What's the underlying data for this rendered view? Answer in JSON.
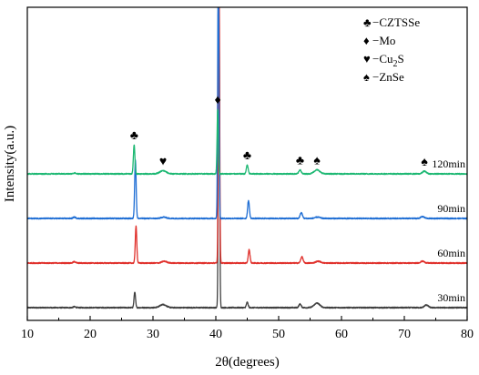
{
  "chart_data": {
    "type": "line",
    "title": "",
    "xlabel": "2θ(degrees)",
    "ylabel": "Intensity(a.u.)",
    "xlim": [
      10,
      80
    ],
    "xticks": [
      "10",
      "20",
      "30",
      "40",
      "50",
      "60",
      "70",
      "80"
    ],
    "y_ticks_shown": false,
    "grid": false,
    "legend_position": "top-right",
    "legend": [
      {
        "symbol": "♣",
        "text": "−CZTSSe"
      },
      {
        "symbol": "♦",
        "text": "−Mo"
      },
      {
        "symbol": "♥",
        "text": "−Cu",
        "sub": "2",
        "tail": "S"
      },
      {
        "symbol": "♠",
        "text": "−ZnSe"
      }
    ],
    "series": [
      {
        "name": "30min",
        "color": "#404040",
        "baseline": 0.0,
        "peaks": [
          {
            "x": 17.5,
            "height": 0.02,
            "width": 0.2
          },
          {
            "x": 27.1,
            "height": 0.35,
            "width": 0.12
          },
          {
            "x": 31.6,
            "height": 0.07,
            "width": 0.5
          },
          {
            "x": 40.5,
            "height": 7.0,
            "width": 0.1
          },
          {
            "x": 45.0,
            "height": 0.12,
            "width": 0.14
          },
          {
            "x": 53.4,
            "height": 0.08,
            "width": 0.18
          },
          {
            "x": 56.1,
            "height": 0.1,
            "width": 0.45
          },
          {
            "x": 73.5,
            "height": 0.06,
            "width": 0.3
          }
        ]
      },
      {
        "name": "60min",
        "color": "#e0312c",
        "baseline": 1.0,
        "peaks": [
          {
            "x": 17.5,
            "height": 0.03,
            "width": 0.2
          },
          {
            "x": 27.3,
            "height": 0.82,
            "width": 0.12
          },
          {
            "x": 31.8,
            "height": 0.04,
            "width": 0.4
          },
          {
            "x": 40.5,
            "height": 7.0,
            "width": 0.1
          },
          {
            "x": 45.3,
            "height": 0.3,
            "width": 0.14
          },
          {
            "x": 53.7,
            "height": 0.14,
            "width": 0.18
          },
          {
            "x": 56.3,
            "height": 0.04,
            "width": 0.4
          },
          {
            "x": 72.9,
            "height": 0.04,
            "width": 0.3
          }
        ]
      },
      {
        "name": "90min",
        "color": "#1f6ed4",
        "baseline": 2.0,
        "peaks": [
          {
            "x": 17.5,
            "height": 0.03,
            "width": 0.2
          },
          {
            "x": 27.2,
            "height": 1.3,
            "width": 0.12
          },
          {
            "x": 31.7,
            "height": 0.03,
            "width": 0.4
          },
          {
            "x": 40.4,
            "height": 6.0,
            "width": 0.1
          },
          {
            "x": 45.2,
            "height": 0.4,
            "width": 0.14
          },
          {
            "x": 53.6,
            "height": 0.13,
            "width": 0.18
          },
          {
            "x": 56.2,
            "height": 0.03,
            "width": 0.4
          },
          {
            "x": 72.9,
            "height": 0.04,
            "width": 0.3
          }
        ]
      },
      {
        "name": "120min",
        "color": "#1db873",
        "baseline": 3.0,
        "peaks": [
          {
            "x": 17.5,
            "height": 0.02,
            "width": 0.2
          },
          {
            "x": 27.0,
            "height": 0.65,
            "width": 0.12
          },
          {
            "x": 31.6,
            "height": 0.07,
            "width": 0.5
          },
          {
            "x": 40.3,
            "height": 1.45,
            "width": 0.1
          },
          {
            "x": 45.0,
            "height": 0.2,
            "width": 0.14
          },
          {
            "x": 53.4,
            "height": 0.09,
            "width": 0.18
          },
          {
            "x": 56.1,
            "height": 0.09,
            "width": 0.45
          },
          {
            "x": 73.2,
            "height": 0.06,
            "width": 0.3
          }
        ]
      }
    ],
    "annotations": [
      {
        "symbol": "♣",
        "x": 27.0,
        "series": "120min"
      },
      {
        "symbol": "♥",
        "x": 31.6,
        "series": "120min"
      },
      {
        "symbol": "♦",
        "x": 40.3,
        "series": "120min"
      },
      {
        "symbol": "♣",
        "x": 45.0,
        "series": "120min"
      },
      {
        "symbol": "♣",
        "x": 53.4,
        "series": "120min"
      },
      {
        "symbol": "♠",
        "x": 56.1,
        "series": "120min"
      },
      {
        "symbol": "♠",
        "x": 73.2,
        "series": "120min"
      }
    ]
  }
}
